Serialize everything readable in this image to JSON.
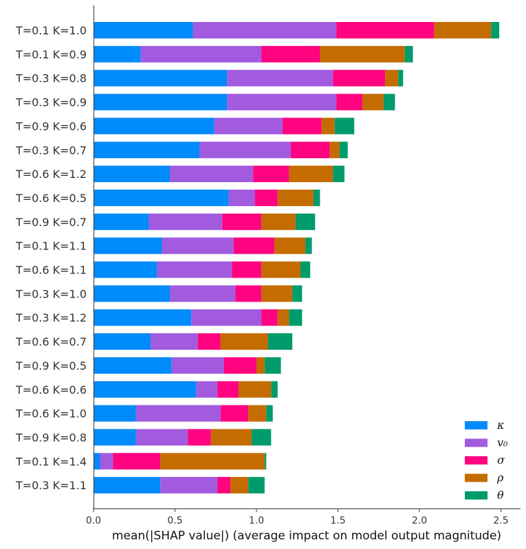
{
  "chart_data": {
    "type": "bar",
    "orientation": "horizontal",
    "stacked": true,
    "categories": [
      "T=0.1 K=1.0",
      "T=0.1 K=0.9",
      "T=0.3 K=0.8",
      "T=0.3 K=0.9",
      "T=0.9 K=0.6",
      "T=0.3 K=0.7",
      "T=0.6 K=1.2",
      "T=0.6 K=0.5",
      "T=0.9 K=0.7",
      "T=0.1 K=1.1",
      "T=0.6 K=1.1",
      "T=0.3 K=1.0",
      "T=0.3 K=1.2",
      "T=0.6 K=0.7",
      "T=0.9 K=0.5",
      "T=0.6 K=0.6",
      "T=0.6 K=1.0",
      "T=0.9 K=0.8",
      "T=0.1 K=1.4",
      "T=0.3 K=1.1"
    ],
    "series": [
      {
        "name": "κ",
        "color": "#008bfb",
        "values": [
          0.61,
          0.29,
          0.82,
          0.82,
          0.74,
          0.65,
          0.47,
          0.83,
          0.34,
          0.42,
          0.39,
          0.47,
          0.6,
          0.35,
          0.48,
          0.63,
          0.26,
          0.26,
          0.04,
          0.41
        ]
      },
      {
        "name": "v₀",
        "color": "#a25bdf",
        "values": [
          0.88,
          0.74,
          0.65,
          0.67,
          0.42,
          0.56,
          0.51,
          0.16,
          0.45,
          0.44,
          0.46,
          0.4,
          0.43,
          0.29,
          0.32,
          0.13,
          0.52,
          0.32,
          0.08,
          0.35
        ]
      },
      {
        "name": "σ",
        "color": "#ff0380",
        "values": [
          0.6,
          0.36,
          0.32,
          0.16,
          0.24,
          0.24,
          0.22,
          0.14,
          0.24,
          0.25,
          0.18,
          0.16,
          0.1,
          0.14,
          0.2,
          0.13,
          0.17,
          0.14,
          0.29,
          0.08
        ]
      },
      {
        "name": "ρ",
        "color": "#c56c00",
        "values": [
          0.35,
          0.52,
          0.08,
          0.13,
          0.08,
          0.06,
          0.27,
          0.22,
          0.21,
          0.19,
          0.24,
          0.19,
          0.07,
          0.29,
          0.05,
          0.2,
          0.11,
          0.25,
          0.64,
          0.11
        ]
      },
      {
        "name": "θ",
        "color": "#009b6d",
        "values": [
          0.05,
          0.05,
          0.03,
          0.07,
          0.12,
          0.05,
          0.07,
          0.04,
          0.12,
          0.04,
          0.06,
          0.06,
          0.08,
          0.15,
          0.1,
          0.04,
          0.04,
          0.12,
          0.01,
          0.1
        ]
      }
    ],
    "xlabel": "mean(|SHAP value|) (average impact on model output magnitude)",
    "ylabel": "",
    "title": "",
    "xlim": [
      0,
      2.55
    ],
    "xticks": [
      "0.0",
      "0.5",
      "1.0",
      "1.5",
      "2.0",
      "2.5"
    ],
    "legend": [
      "κ",
      "v₀",
      "σ",
      "ρ",
      "θ"
    ],
    "legend_position": "bottom-right",
    "grid": false
  }
}
